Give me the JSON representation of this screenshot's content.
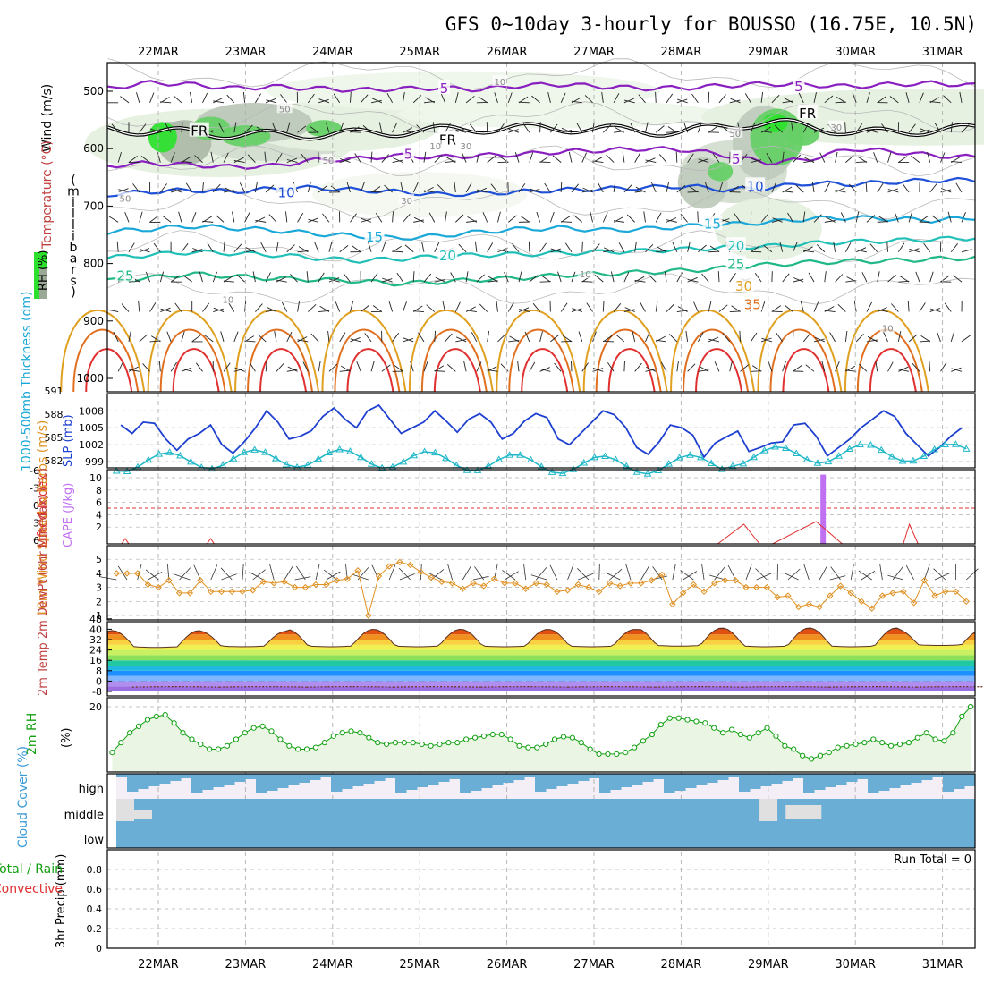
{
  "chart_data": {
    "type": "meteogram",
    "title": "GFS 0~10day 3-hourly for BOUSSO (16.75E, 10.5N)",
    "dates": [
      "22MAR",
      "23MAR",
      "24MAR",
      "25MAR",
      "26MAR",
      "27MAR",
      "28MAR",
      "29MAR",
      "30MAR",
      "31MAR"
    ],
    "panels": {
      "profile": {
        "ylabel_chars": [
          "(",
          "m",
          "i",
          "l",
          "l",
          "i",
          "b",
          "a",
          "r",
          "s",
          ")"
        ],
        "side_labels": {
          "wind": "Wind (m/s)",
          "temperature": "Temperature (°C)",
          "rh": "RH (%)"
        },
        "y_ticks": [
          500,
          600,
          700,
          800,
          900,
          1000
        ],
        "temperature_contours": [
          {
            "value": 5,
            "label": "5",
            "color": "#8a1fc0",
            "levels": [
              495,
              485,
              488,
              495,
              492,
              495,
              498,
              496,
              494,
              497,
              490,
              488,
              492,
              495,
              494,
              490,
              487,
              489,
              492,
              488,
              486,
              490
            ]
          },
          {
            "value": 5,
            "label": "5",
            "color": "#8a1fc0",
            "levels": [
              630,
              625,
              628,
              632,
              630,
              620,
              618,
              612,
              615,
              612,
              610,
              605,
              603,
              600,
              602,
              612,
              625,
              618,
              600,
              605,
              612,
              615
            ]
          },
          {
            "value": 10,
            "label": "10",
            "color": "#1e50d8",
            "levels": [
              680,
              675,
              672,
              675,
              670,
              668,
              672,
              675,
              680,
              678,
              675,
              672,
              670,
              668,
              665,
              672,
              668,
              660,
              662,
              658,
              655,
              655
            ]
          },
          {
            "value": 15,
            "label": "15",
            "color": "#1aa8d8",
            "levels": [
              745,
              740,
              735,
              738,
              742,
              748,
              752,
              756,
              752,
              745,
              740,
              738,
              742,
              740,
              735,
              732,
              728,
              722,
              720,
              722,
              725,
              720
            ]
          },
          {
            "value": 20,
            "label": "20",
            "color": "#20c0b8",
            "levels": [
              790,
              785,
              780,
              782,
              785,
              790,
              795,
              792,
              788,
              785,
              784,
              782,
              780,
              778,
              775,
              772,
              770,
              765,
              762,
              760,
              758,
              755
            ]
          },
          {
            "value": 25,
            "label": "25",
            "color": "#20b888",
            "levels": [
              830,
              825,
              818,
              822,
              826,
              828,
              830,
              835,
              832,
              828,
              825,
              820,
              818,
              815,
              812,
              808,
              802,
              798,
              796,
              795,
              792,
              790
            ]
          }
        ],
        "line_labels": [
          {
            "text": "5",
            "color": "#8a1fc0",
            "day": 3.28,
            "level": 494
          },
          {
            "text": "5",
            "color": "#8a1fc0",
            "day": 7.35,
            "level": 491
          },
          {
            "text": "5",
            "color": "#8a1fc0",
            "day": 2.87,
            "level": 608
          },
          {
            "text": "5",
            "color": "#8a1fc0",
            "day": 6.63,
            "level": 617
          },
          {
            "text": "10",
            "color": "#1e50d8",
            "day": 1.47,
            "level": 675
          },
          {
            "text": "10",
            "color": "#1e50d8",
            "day": 6.85,
            "level": 664
          },
          {
            "text": "15",
            "color": "#1aa8d8",
            "day": 2.48,
            "level": 752
          },
          {
            "text": "15",
            "color": "#1aa8d8",
            "day": 6.36,
            "level": 730
          },
          {
            "text": "20",
            "color": "#20c0b8",
            "day": 3.32,
            "level": 785
          },
          {
            "text": "20",
            "color": "#20c0b8",
            "day": 6.63,
            "level": 768
          },
          {
            "text": "25",
            "color": "#20b888",
            "day": -0.38,
            "level": 820
          },
          {
            "text": "25",
            "color": "#20b888",
            "day": 6.63,
            "level": 800
          },
          {
            "text": "30",
            "color": "#e0a020",
            "day": 6.72,
            "level": 838
          },
          {
            "text": "35",
            "color": "#e07020",
            "day": 6.82,
            "level": 870
          },
          {
            "text": "FR",
            "color": "#000000",
            "day": 0.47,
            "level": 568
          },
          {
            "text": "FR",
            "color": "#000000",
            "day": 3.32,
            "level": 583
          },
          {
            "text": "FR",
            "color": "#000000",
            "day": 7.45,
            "level": 537
          },
          {
            "text": "50",
            "color": "#888888",
            "day": 1.45,
            "level": 530
          },
          {
            "text": "50",
            "color": "#888888",
            "day": 1.95,
            "level": 620
          },
          {
            "text": "50",
            "color": "#888888",
            "day": 6.62,
            "level": 573
          },
          {
            "text": "30",
            "color": "#888888",
            "day": 7.78,
            "level": 562
          },
          {
            "text": "30",
            "color": "#888888",
            "day": 2.85,
            "level": 690
          },
          {
            "text": "30",
            "color": "#888888",
            "day": 3.53,
            "level": 595
          },
          {
            "text": "10",
            "color": "#888888",
            "day": 3.92,
            "level": 483
          },
          {
            "text": "10",
            "color": "#888888",
            "day": 3.18,
            "level": 595
          },
          {
            "text": "10",
            "color": "#888888",
            "day": 4.9,
            "level": 818
          },
          {
            "text": "10",
            "color": "#888888",
            "day": 8.37,
            "level": 912
          },
          {
            "text": "10",
            "color": "#888888",
            "day": 0.8,
            "level": 862
          },
          {
            "text": "50",
            "color": "#888888",
            "day": -0.38,
            "level": 686
          }
        ]
      },
      "pressure": {
        "ylabel": "1000-500mb Thickness (dm)",
        "ylabel_right": "SLP (mb)",
        "thickness_ticks": [
          582,
          585,
          588,
          591
        ],
        "slp_ticks": [
          999,
          1002,
          1005,
          1008
        ],
        "slp_series": [
          1005.5,
          1004,
          1006,
          1005.8,
          1003,
          1001,
          1003,
          1004,
          1005.5,
          1002,
          1000.5,
          1002.5,
          1005,
          1008,
          1006,
          1003,
          1003.5,
          1004.5,
          1007,
          1008.5,
          1006.5,
          1005,
          1008,
          1009,
          1006.5,
          1004,
          1005,
          1006,
          1008,
          1006.2,
          1004.2,
          1006.5,
          1007.5,
          1006,
          1003,
          1004,
          1006.2,
          1007.5,
          1006.8,
          1003,
          1002,
          1004,
          1006,
          1008,
          1007.3,
          1005.1,
          1001.5,
          1000.3,
          1002.5,
          1005.5,
          1005,
          1003.7,
          999.8,
          1002.3,
          1003.4,
          1004.4,
          1000.8,
          1001.5,
          1002.3,
          1002.5,
          1005.5,
          1005.8,
          1003.5,
          1000,
          1001.5,
          1003,
          1005,
          1006.5,
          1008,
          1007,
          1004,
          1002,
          1000,
          1001.5,
          1003.5,
          1005
        ]
      },
      "lifted": {
        "ylabel": "Lifted Index",
        "ylabel_right": "CAPE (J/kg)",
        "li_ticks": [
          -6,
          -3,
          0,
          3,
          6
        ],
        "cape_ticks": [
          2,
          4,
          6,
          8,
          10
        ],
        "cape_bar": {
          "day": 7.63,
          "value": 10.5
        }
      },
      "wind10m": {
        "ylabel": "10m Wind Speed & Barbs (m/s)",
        "y_ticks": [
          1,
          2,
          3,
          4,
          5
        ],
        "speed": [
          4,
          4,
          4,
          3.2,
          3,
          3.5,
          2.6,
          2.6,
          3.5,
          2.7,
          2.7,
          2.7,
          2.7,
          2.8,
          3.4,
          3.3,
          3.4,
          3.0,
          3.0,
          3.2,
          3.2,
          3.5,
          3.6,
          4.2,
          1.0,
          3.8,
          4.5,
          4.8,
          4.6,
          4.1,
          3.7,
          3.4,
          3.3,
          2.9,
          3.3,
          3.1,
          3.6,
          3.3,
          3.3,
          2.9,
          3.3,
          3.2,
          2.7,
          2.8,
          3.2,
          3.0,
          2.7,
          3.3,
          3.1,
          3.3,
          3.3,
          3.5,
          3.9,
          1.8,
          2.6,
          3.2,
          2.7,
          3.3,
          3.5,
          3.5,
          3.0,
          3.0,
          3.0,
          2.3,
          2.4,
          1.6,
          1.8,
          1.6,
          2.4,
          3.1,
          2.6,
          2.0,
          1.5,
          2.4,
          2.6,
          2.7,
          1.9,
          3.5,
          2.4,
          2.7,
          2.7,
          2.0
        ]
      },
      "temp2m": {
        "ylabel": "2m Temp 2m DewPt (6hr Min/Max) (°C)",
        "y_ticks": [
          -8,
          0,
          8,
          16,
          24,
          32,
          40,
          48
        ],
        "day_max": [
          39,
          38.5,
          40,
          40,
          40,
          40,
          41,
          41,
          41,
          40
        ],
        "night_min": [
          26.5,
          27,
          27,
          27,
          27,
          27,
          27.5,
          27,
          27,
          28
        ],
        "dewpoint_level": -6
      },
      "rh2m": {
        "ylabel": "2m RH",
        "yunit": "(%)",
        "y_ticks": [
          20
        ],
        "values": [
          6,
          9,
          12,
          14,
          16,
          17,
          17.5,
          15,
          12,
          10,
          8.5,
          7,
          7,
          8,
          10,
          12,
          13.5,
          14,
          12.5,
          10,
          8,
          7,
          7,
          7.5,
          9,
          11,
          12,
          12.5,
          12,
          10.5,
          9,
          8.5,
          9,
          9,
          9,
          8.5,
          8,
          8.5,
          9,
          9,
          10,
          10.5,
          11,
          11.5,
          11.5,
          10,
          8,
          7.5,
          7.5,
          8.5,
          10,
          10.8,
          10.5,
          9,
          7,
          5.5,
          5.5,
          5.5,
          6,
          7.5,
          9.5,
          11.5,
          14.5,
          16.5,
          16.5,
          16,
          15.5,
          15,
          13.5,
          12,
          13,
          11.5,
          10.5,
          12,
          13.5,
          11,
          8,
          7,
          5,
          4,
          5,
          6,
          7.5,
          8,
          8.5,
          9,
          10,
          9,
          8,
          8.5,
          9,
          10.5,
          12,
          10,
          9.5,
          12,
          17,
          20
        ]
      },
      "cloud": {
        "ylabel": "Cloud Cover (%)",
        "layers": [
          "high",
          "middle",
          "low"
        ]
      },
      "precip": {
        "ylabel": "3hr Precip (mm)",
        "legend_total_rain": "Total / Rain",
        "legend_convective": "Convective",
        "run_total": "Run Total = 0",
        "y_ticks": [
          0,
          0.2,
          0.4,
          0.6,
          0.8
        ]
      }
    }
  },
  "colors": {
    "slp": "#1e40d0",
    "thickness": "#20b8c8",
    "lifted": "#e03030",
    "cape": "#c070f0",
    "wind": "#e09020",
    "rh": "#10a010",
    "rh_fill": "#eaf5e4",
    "cloud": "#6aaed6",
    "cloud_bg": "#f4eef6",
    "grid": "#b0b0b0"
  }
}
